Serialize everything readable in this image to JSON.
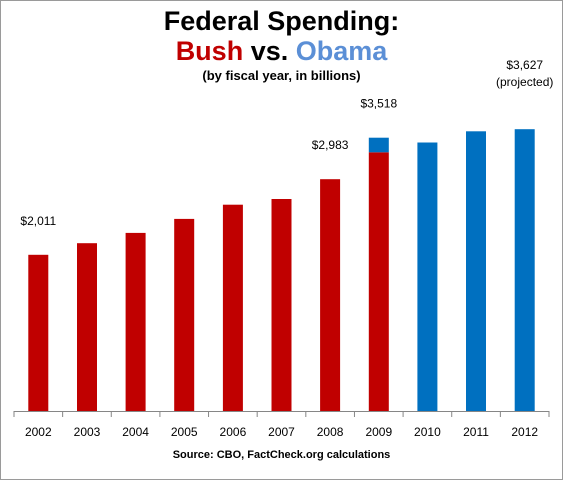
{
  "chart_data": {
    "type": "bar",
    "title_line1": "Federal Spending:",
    "title_bush": "Bush",
    "title_vs": "vs.",
    "title_obama": "Obama",
    "subtitle": "(by fiscal year, in billions)",
    "source": "Source: CBO, FactCheck.org calculations",
    "categories": [
      "2002",
      "2003",
      "2004",
      "2005",
      "2006",
      "2007",
      "2008",
      "2009",
      "2010",
      "2011",
      "2012"
    ],
    "series": [
      {
        "name": "Bush",
        "color": "#c00000",
        "values": [
          2011,
          2160,
          2293,
          2472,
          2655,
          2729,
          2983,
          3330,
          0,
          0,
          0
        ]
      },
      {
        "name": "Obama",
        "color": "#0070c0",
        "values": [
          0,
          0,
          0,
          0,
          0,
          0,
          0,
          188,
          3456,
          3600,
          3627
        ]
      }
    ],
    "data_labels": [
      {
        "category": "2002",
        "text": "$2,011"
      },
      {
        "category": "2008",
        "text": "$2,983"
      },
      {
        "category": "2009",
        "text": "$3,518"
      },
      {
        "category": "2012",
        "text": "$3,627",
        "note": "(projected)"
      }
    ],
    "ylim": [
      0,
      3900
    ],
    "stacked": true,
    "grid": false,
    "legend": "none"
  }
}
